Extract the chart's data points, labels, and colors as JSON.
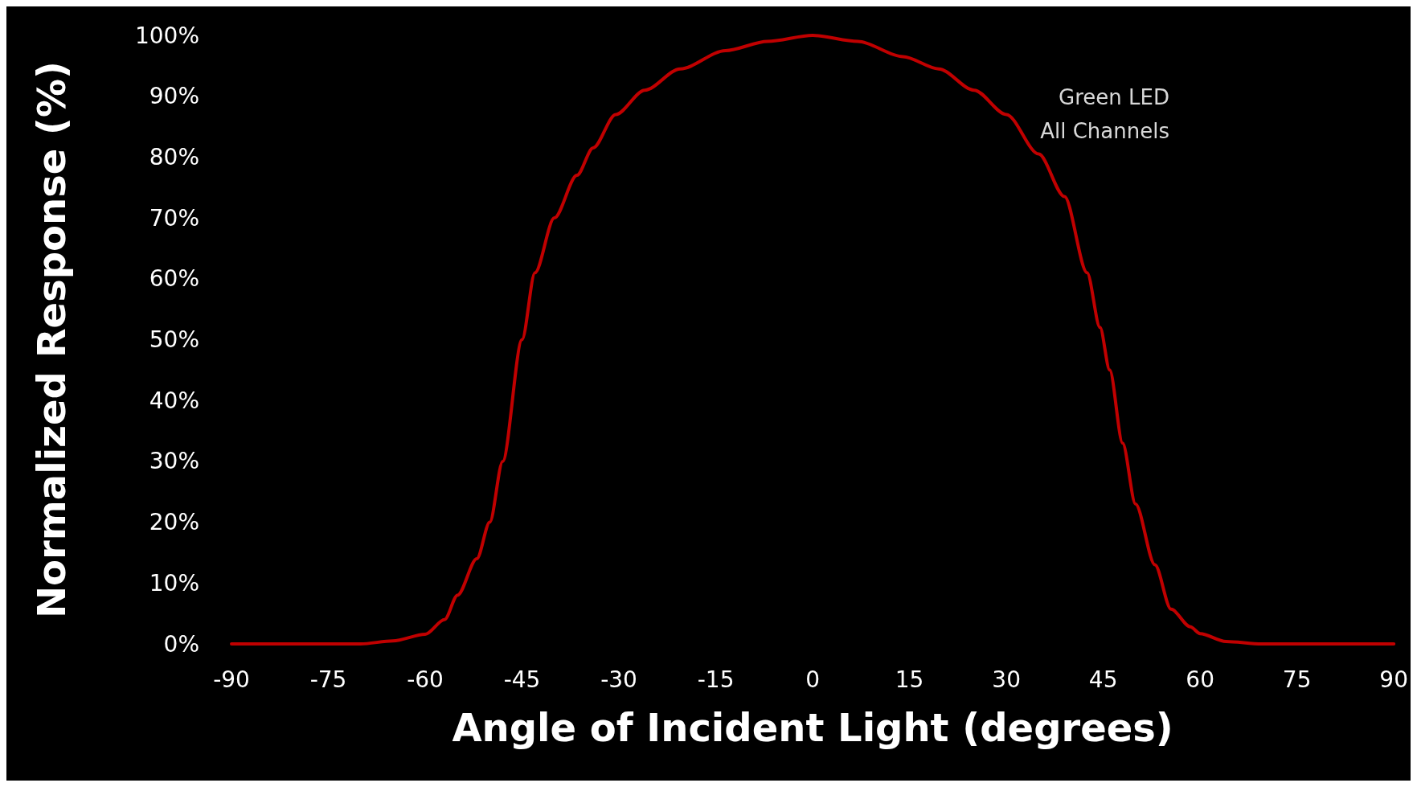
{
  "chart_data": {
    "type": "line",
    "xlabel": "Angle of Incident Light (degrees)",
    "ylabel": "Normalized Response (%)",
    "annotations": [
      "Green LED",
      "All Channels"
    ],
    "x": [
      -90,
      -80,
      -70,
      -65,
      -60,
      -57,
      -55,
      -52,
      -50,
      -48,
      -45,
      -43,
      -40,
      -36.5,
      -34,
      -30.5,
      -26,
      -20.5,
      -13.5,
      -7,
      0,
      7,
      14,
      19.5,
      25,
      30,
      35,
      39,
      42.5,
      44.5,
      46,
      48,
      50,
      53,
      55.5,
      58.5,
      60,
      64,
      69.5,
      80,
      90
    ],
    "series": [
      {
        "color": "#c00000",
        "values": [
          0,
          0,
          0,
          0.5,
          1.6,
          4,
          8,
          14,
          20,
          30,
          50,
          61,
          70,
          77,
          81.5,
          87,
          91,
          94.5,
          97.5,
          99,
          100,
          99,
          96.5,
          94.5,
          91,
          87,
          80.5,
          73.5,
          61,
          52,
          45,
          33,
          23,
          13,
          5.7,
          2.8,
          1.7,
          0.4,
          0,
          0,
          0
        ]
      }
    ],
    "xlim": [
      -90,
      90
    ],
    "xticks": [
      -90,
      -75,
      -60,
      -45,
      -30,
      -15,
      0,
      15,
      30,
      45,
      60,
      75,
      90
    ],
    "ylim": [
      0,
      100
    ],
    "yticks": [
      {
        "value": 0,
        "label": "0%"
      },
      {
        "value": 10,
        "label": "10%"
      },
      {
        "value": 20,
        "label": "20%"
      },
      {
        "value": 30,
        "label": "30%"
      },
      {
        "value": 40,
        "label": "40%"
      },
      {
        "value": 50,
        "label": "50%"
      },
      {
        "value": 60,
        "label": "60%"
      },
      {
        "value": 70,
        "label": "70%"
      },
      {
        "value": 80,
        "label": "80%"
      },
      {
        "value": 90,
        "label": "90%"
      },
      {
        "value": 100,
        "label": "100%"
      }
    ],
    "grid": false,
    "marker": "none",
    "line_style": "solid"
  }
}
